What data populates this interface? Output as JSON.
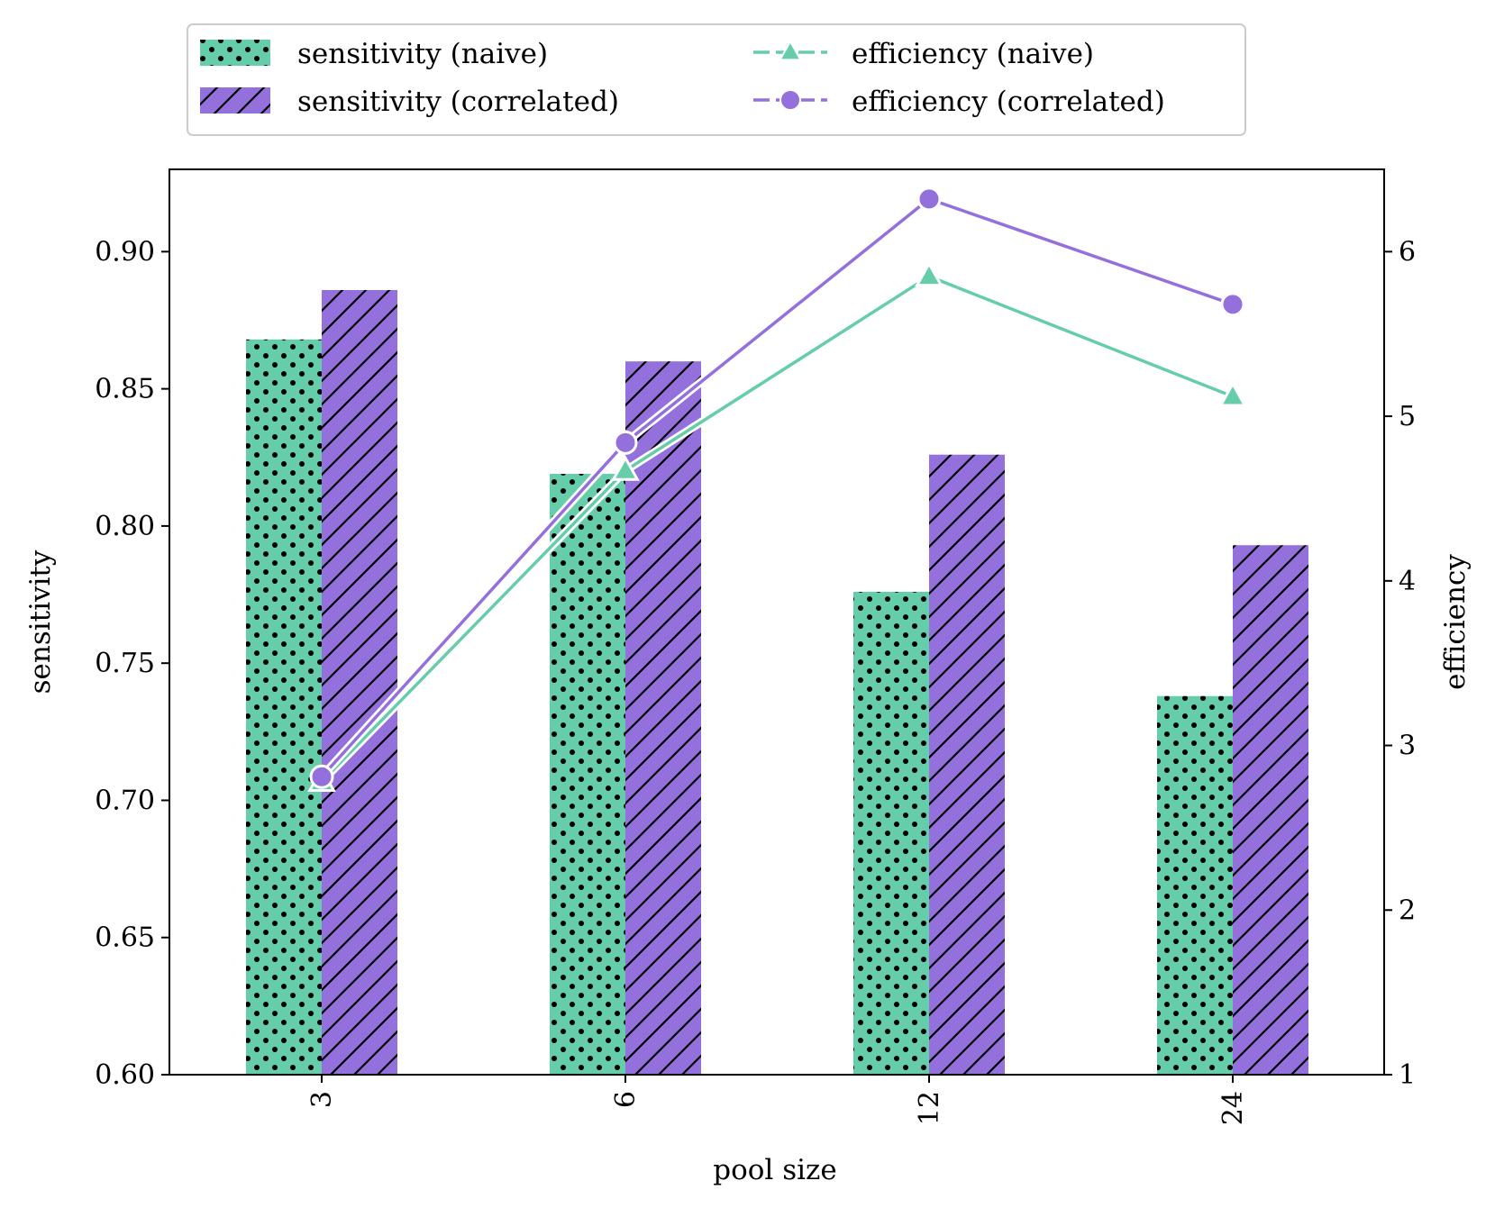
{
  "chart_data": {
    "type": "bar",
    "categories": [
      "3",
      "6",
      "12",
      "24"
    ],
    "xlabel": "pool size",
    "ylabel": "sensitivity",
    "ylabel_right": "efficiency",
    "ylim": [
      0.6,
      0.93
    ],
    "ylim_right": [
      1,
      6.5
    ],
    "yticks": [
      "0.60",
      "0.65",
      "0.70",
      "0.75",
      "0.80",
      "0.85",
      "0.90"
    ],
    "yticks_right": [
      "1",
      "2",
      "3",
      "4",
      "5",
      "6"
    ],
    "bar_series": [
      {
        "name": "sensitivity (naive)",
        "values": [
          0.868,
          0.819,
          0.776,
          0.738
        ],
        "color": "#66cdaa",
        "pattern": "dots"
      },
      {
        "name": "sensitivity (correlated)",
        "values": [
          0.886,
          0.86,
          0.826,
          0.793
        ],
        "color": "#9370db",
        "pattern": "hatch"
      }
    ],
    "line_series": [
      {
        "name": "efficiency (naive)",
        "values": [
          2.78,
          4.67,
          5.85,
          5.12
        ],
        "color": "#66cdaa",
        "marker": "triangle",
        "axis": "right"
      },
      {
        "name": "efficiency (correlated)",
        "values": [
          2.81,
          4.84,
          6.32,
          5.68
        ],
        "color": "#9370db",
        "marker": "circle",
        "axis": "right"
      }
    ],
    "grid": false,
    "legend_position": "top-center"
  }
}
